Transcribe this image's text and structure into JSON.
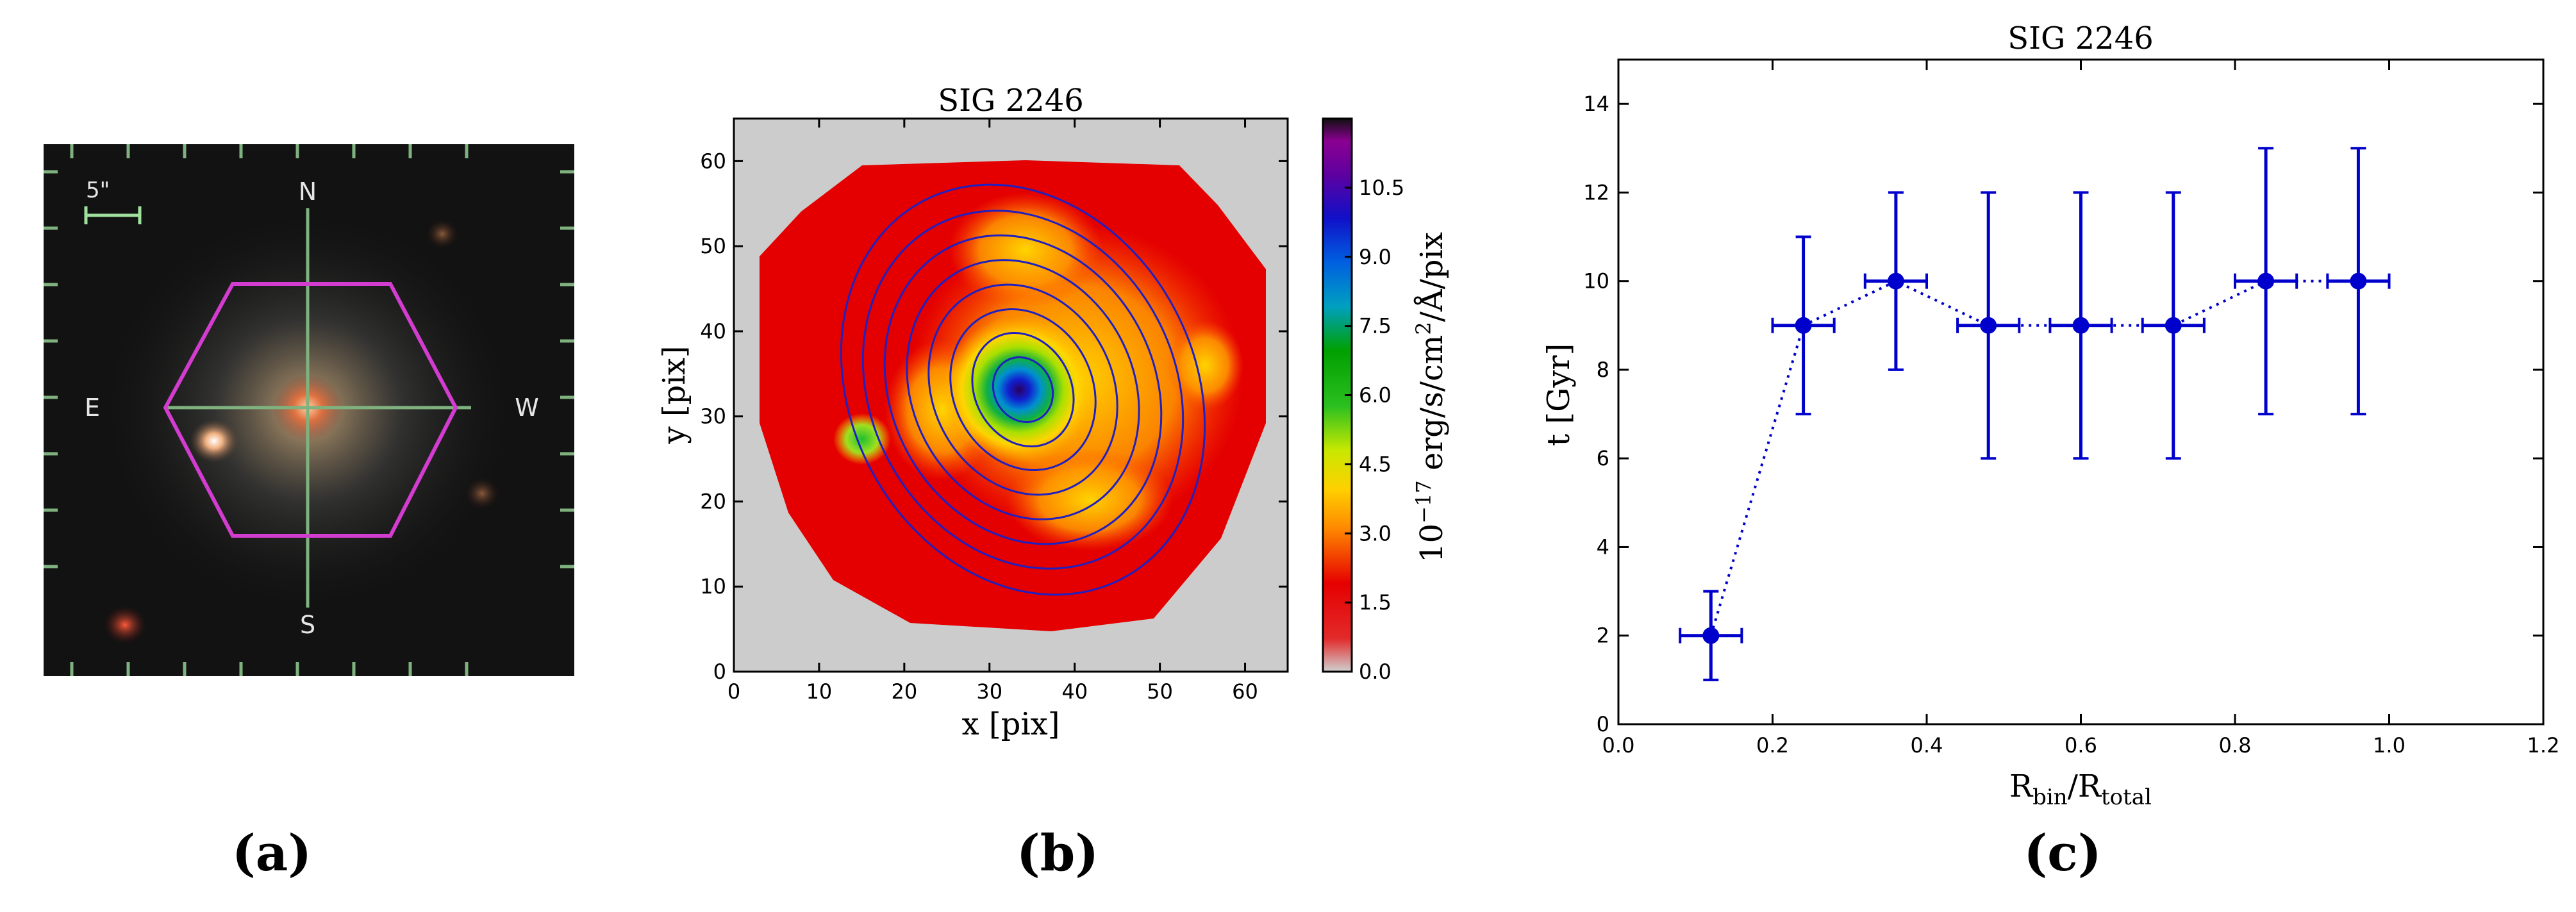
{
  "panels": [
    {
      "letter": "(a)",
      "scale_label": "5\"",
      "compass": {
        "north": "N",
        "south": "S",
        "east": "E",
        "west": "W"
      },
      "colors": {
        "hexagon": "#d23ccf",
        "crosshair": "#7fb27f",
        "sky": "#121212"
      }
    },
    {
      "letter": "(b)",
      "title": "SIG 2246",
      "xlabel": "x [pix]",
      "ylabel": "y [pix]",
      "colorbar_label": "10^-17 erg/s/cm^2/Å/pix",
      "colorbar_label_parts": {
        "base": "10",
        "exp": "−17",
        "unit1": " erg/s/cm",
        "sq": "2",
        "unit2": "/Å/pix"
      },
      "colorbar_ticks": [
        "0.0",
        "1.5",
        "3.0",
        "4.5",
        "6.0",
        "7.5",
        "9.0",
        "10.5"
      ],
      "x_ticks": [
        "0",
        "10",
        "20",
        "30",
        "40",
        "50",
        "60"
      ],
      "y_ticks": [
        "0",
        "10",
        "20",
        "30",
        "40",
        "50",
        "60"
      ],
      "colors": {
        "background": "#cccccc",
        "contours": "#2020c0"
      }
    },
    {
      "letter": "(c)",
      "title": "SIG 2246",
      "ylabel": "t [Gyr]",
      "xlabel_base": "R",
      "xlabel_sub1": "bin",
      "xlabel_mid": "/R",
      "xlabel_sub2": "total",
      "x_ticks": [
        "0.0",
        "0.2",
        "0.4",
        "0.6",
        "0.8",
        "1.0",
        "1.2"
      ],
      "y_ticks": [
        "0",
        "2",
        "4",
        "6",
        "8",
        "10",
        "12",
        "14"
      ]
    }
  ],
  "chart_data": {
    "type": "scatter",
    "title": "SIG 2246",
    "xlabel": "R_bin/R_total",
    "ylabel": "t [Gyr]",
    "xlim": [
      0.0,
      1.2
    ],
    "ylim": [
      0,
      15
    ],
    "grid": false,
    "color": "#0000cc",
    "line_style": "dotted",
    "points": [
      {
        "x": 0.12,
        "y": 2,
        "xerr": 0.04,
        "yerr_low": 1,
        "yerr_high": 1
      },
      {
        "x": 0.24,
        "y": 9,
        "xerr": 0.04,
        "yerr_low": 2,
        "yerr_high": 2
      },
      {
        "x": 0.36,
        "y": 10,
        "xerr": 0.04,
        "yerr_low": 2,
        "yerr_high": 2
      },
      {
        "x": 0.48,
        "y": 9,
        "xerr": 0.04,
        "yerr_low": 3,
        "yerr_high": 3
      },
      {
        "x": 0.6,
        "y": 9,
        "xerr": 0.04,
        "yerr_low": 3,
        "yerr_high": 3
      },
      {
        "x": 0.72,
        "y": 9,
        "xerr": 0.04,
        "yerr_low": 3,
        "yerr_high": 3
      },
      {
        "x": 0.84,
        "y": 10,
        "xerr": 0.04,
        "yerr_low": 3,
        "yerr_high": 3
      },
      {
        "x": 0.96,
        "y": 10,
        "xerr": 0.04,
        "yerr_low": 3,
        "yerr_high": 3
      }
    ]
  }
}
